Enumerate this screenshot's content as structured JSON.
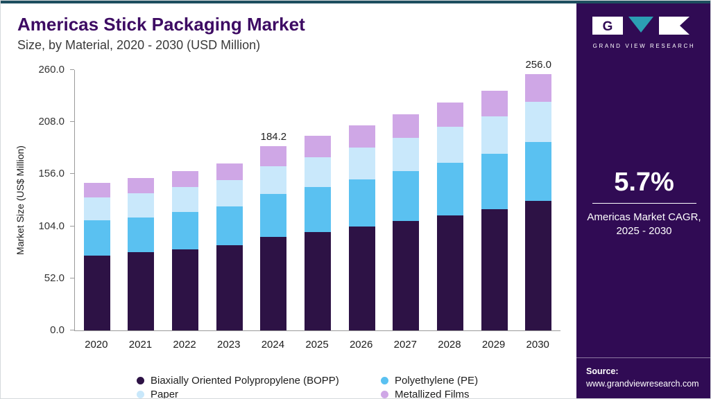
{
  "page": {
    "title": "Americas Stick Packaging Market",
    "subtitle": "Size, by Material, 2020 - 2030 (USD Million)"
  },
  "chart_data": {
    "type": "bar",
    "stacked": true,
    "title": "Americas Stick Packaging Market Size, by Material, 2020 - 2030 (USD Million)",
    "xlabel": "",
    "ylabel": "Market Size (US$ Million)",
    "ylim": [
      0,
      260
    ],
    "ytick_labels": [
      "0.0",
      "52.0",
      "104.0",
      "156.0",
      "208.0",
      "260.0"
    ],
    "grid": false,
    "legend_position": "bottom",
    "categories": [
      "2020",
      "2021",
      "2022",
      "2023",
      "2024",
      "2025",
      "2026",
      "2027",
      "2028",
      "2029",
      "2030"
    ],
    "series": [
      {
        "key": "bopp",
        "name": "Biaxially Oriented Polypropylene (BOPP)",
        "color": "#2d1245",
        "values": [
          75,
          78,
          81,
          85,
          93.5,
          98,
          103.5,
          109,
          115,
          121,
          129
        ]
      },
      {
        "key": "pe",
        "name": "Polyethylene (PE)",
        "color": "#5ac1f1",
        "values": [
          35,
          35,
          37,
          39,
          42.5,
          45,
          47,
          50,
          52.5,
          55.5,
          59
        ]
      },
      {
        "key": "paper",
        "name": "Paper",
        "color": "#c9e8fb",
        "values": [
          23,
          24,
          25,
          26,
          28,
          30,
          32,
          33.6,
          35.5,
          37.5,
          40.5
        ]
      },
      {
        "key": "metallized-films",
        "name": "Metallized Films",
        "color": "#cfa7e6",
        "values": [
          14,
          15,
          16,
          17,
          20.2,
          21,
          22,
          23,
          24.3,
          25.6,
          27.5
        ]
      }
    ],
    "totals": [
      147,
      152,
      159,
      167,
      184.2,
      194,
      204.5,
      215.6,
      227.3,
      239.6,
      256
    ],
    "value_labels": {
      "2024": "184.2",
      "2030": "256.0"
    }
  },
  "sidebar": {
    "logo_text": "GRAND VIEW RESEARCH",
    "cagr_value": "5.7%",
    "cagr_caption_line1": "Americas Market CAGR,",
    "cagr_caption_line2": "2025 - 2030",
    "source_label": "Source:",
    "source_url": "www.grandviewresearch.com"
  },
  "colors": {
    "title_purple": "#3d0b63",
    "sidebar_background": "#300b54",
    "top_rule": "#1d4e5f",
    "logo_teal": "#2b9fb3",
    "axis_gray": "#9a9a9a"
  }
}
